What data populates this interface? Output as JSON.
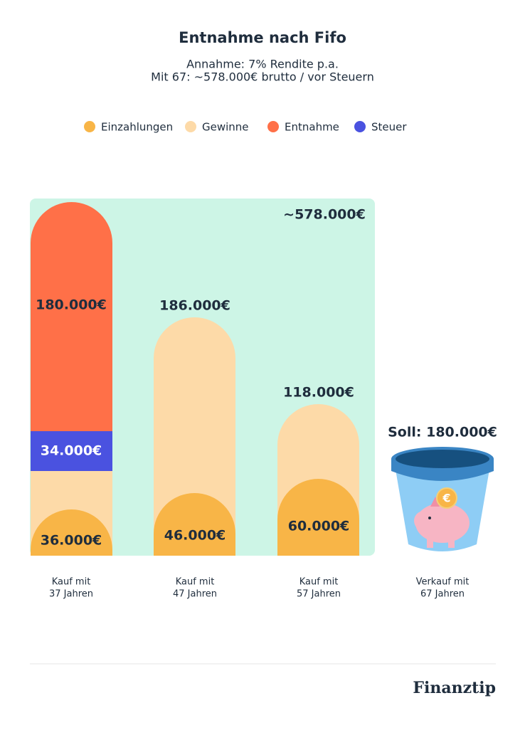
{
  "header": {
    "title": "Entnahme nach Fifo",
    "subtitle": [
      "Annahme: 7% Rendite p.a.",
      "Mit 67: ~578.000€ brutto / vor Steuern"
    ]
  },
  "legend": [
    {
      "label": "Einzahlungen",
      "color": "#f8b547"
    },
    {
      "label": "Gewinne",
      "color": "#fddaa8"
    },
    {
      "label": "Entnahme",
      "color": "#ff7048"
    },
    {
      "label": "Steuer",
      "color": "#4a52e0"
    }
  ],
  "total_label": "~578.000€",
  "columns": [
    {
      "labels": [
        "180.000€",
        "34.000€",
        "36.000€"
      ],
      "x_label": [
        "Kauf mit",
        "37 Jahren"
      ]
    },
    {
      "labels": [
        "186.000€",
        "46.000€"
      ],
      "x_label": [
        "Kauf mit",
        "47 Jahren"
      ]
    },
    {
      "labels": [
        "118.000€",
        "60.000€"
      ],
      "x_label": [
        "Kauf mit",
        "57 Jahren"
      ]
    },
    {
      "labels": [
        "Soll: 180.000€"
      ],
      "x_label": [
        "Verkauf mit",
        "67 Jahren"
      ]
    }
  ],
  "brand": "Finanztip"
}
